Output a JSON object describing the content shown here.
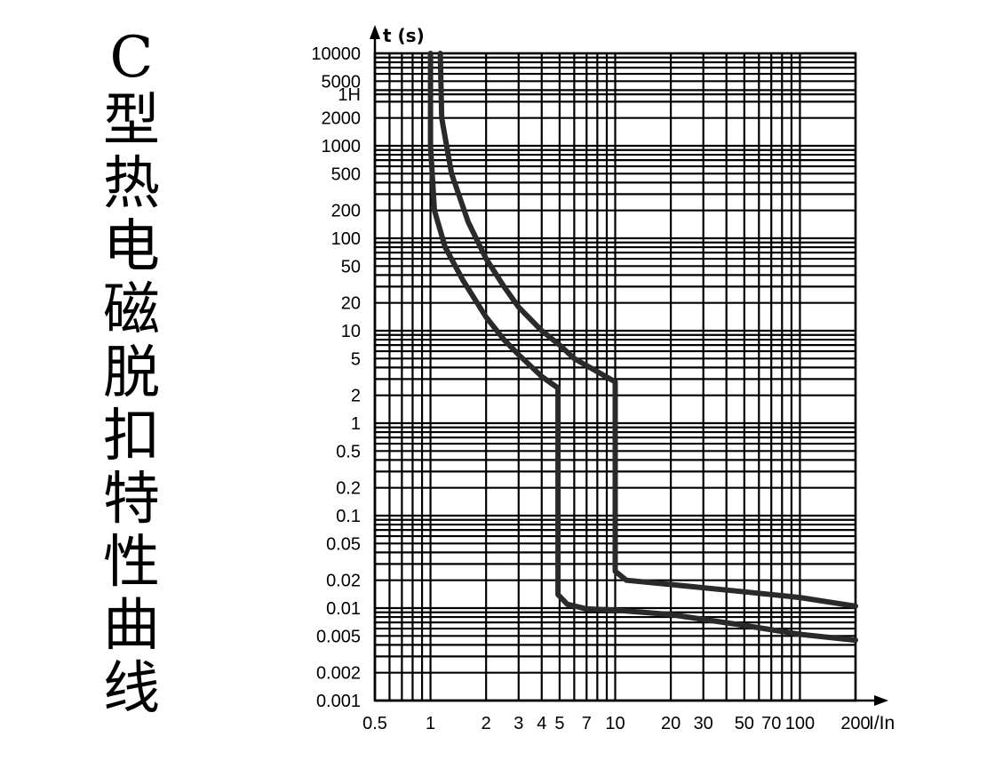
{
  "title_chars": [
    "C",
    "型",
    "热",
    "电",
    "磁",
    "脱",
    "扣",
    "特",
    "性",
    "曲",
    "线"
  ],
  "chart_data": {
    "type": "line",
    "xlabel": "I/In",
    "ylabel": "t (s)",
    "xscale": "log",
    "yscale": "log",
    "xlim": [
      0.5,
      200
    ],
    "ylim": [
      0.001,
      10000
    ],
    "grid": true,
    "x_tick_labels": [
      "0.5",
      "1",
      "2",
      "3",
      "4",
      "5",
      "7",
      "10",
      "20",
      "30",
      "50",
      "70",
      "100",
      "200"
    ],
    "x_ticks": [
      0.5,
      1,
      2,
      3,
      4,
      5,
      7,
      10,
      20,
      30,
      50,
      70,
      100,
      200
    ],
    "y_tick_labels": [
      "10000",
      "5000",
      "1H",
      "2000",
      "1000",
      "500",
      "200",
      "100",
      "50",
      "20",
      "10",
      "5",
      "2",
      "1",
      "0.5",
      "0.2",
      "0.1",
      "0.05",
      "0.02",
      "0.01",
      "0.005",
      "0.002",
      "0.001"
    ],
    "y_ticks": [
      10000,
      5000,
      3600,
      2000,
      1000,
      500,
      200,
      100,
      50,
      20,
      10,
      5,
      2,
      1,
      0.5,
      0.2,
      0.1,
      0.05,
      0.02,
      0.01,
      0.005,
      0.002,
      0.001
    ],
    "series": [
      {
        "values": [
          [
            1.0,
            10000
          ],
          [
            1.0,
            1000
          ],
          [
            1.05,
            200
          ],
          [
            1.2,
            80
          ],
          [
            1.5,
            35
          ],
          [
            2.0,
            14
          ],
          [
            2.5,
            8
          ],
          [
            3.0,
            5.5
          ],
          [
            4.0,
            3.2
          ],
          [
            4.9,
            2.4
          ],
          [
            4.9,
            0.014
          ],
          [
            5.5,
            0.011
          ],
          [
            7,
            0.0098
          ],
          [
            10,
            0.0095
          ],
          [
            20,
            0.0085
          ],
          [
            50,
            0.0065
          ],
          [
            100,
            0.0052
          ],
          [
            200,
            0.0045
          ]
        ]
      },
      {
        "values": [
          [
            1.13,
            10000
          ],
          [
            1.15,
            2000
          ],
          [
            1.3,
            500
          ],
          [
            1.6,
            150
          ],
          [
            2.0,
            60
          ],
          [
            2.5,
            30
          ],
          [
            3.0,
            18
          ],
          [
            4.0,
            10
          ],
          [
            5.0,
            7
          ],
          [
            6.0,
            5
          ],
          [
            8.0,
            3.6
          ],
          [
            10.0,
            2.8
          ],
          [
            10.0,
            0.025
          ],
          [
            11.5,
            0.02
          ],
          [
            20,
            0.018
          ],
          [
            50,
            0.015
          ],
          [
            100,
            0.013
          ],
          [
            200,
            0.0105
          ]
        ]
      }
    ]
  }
}
